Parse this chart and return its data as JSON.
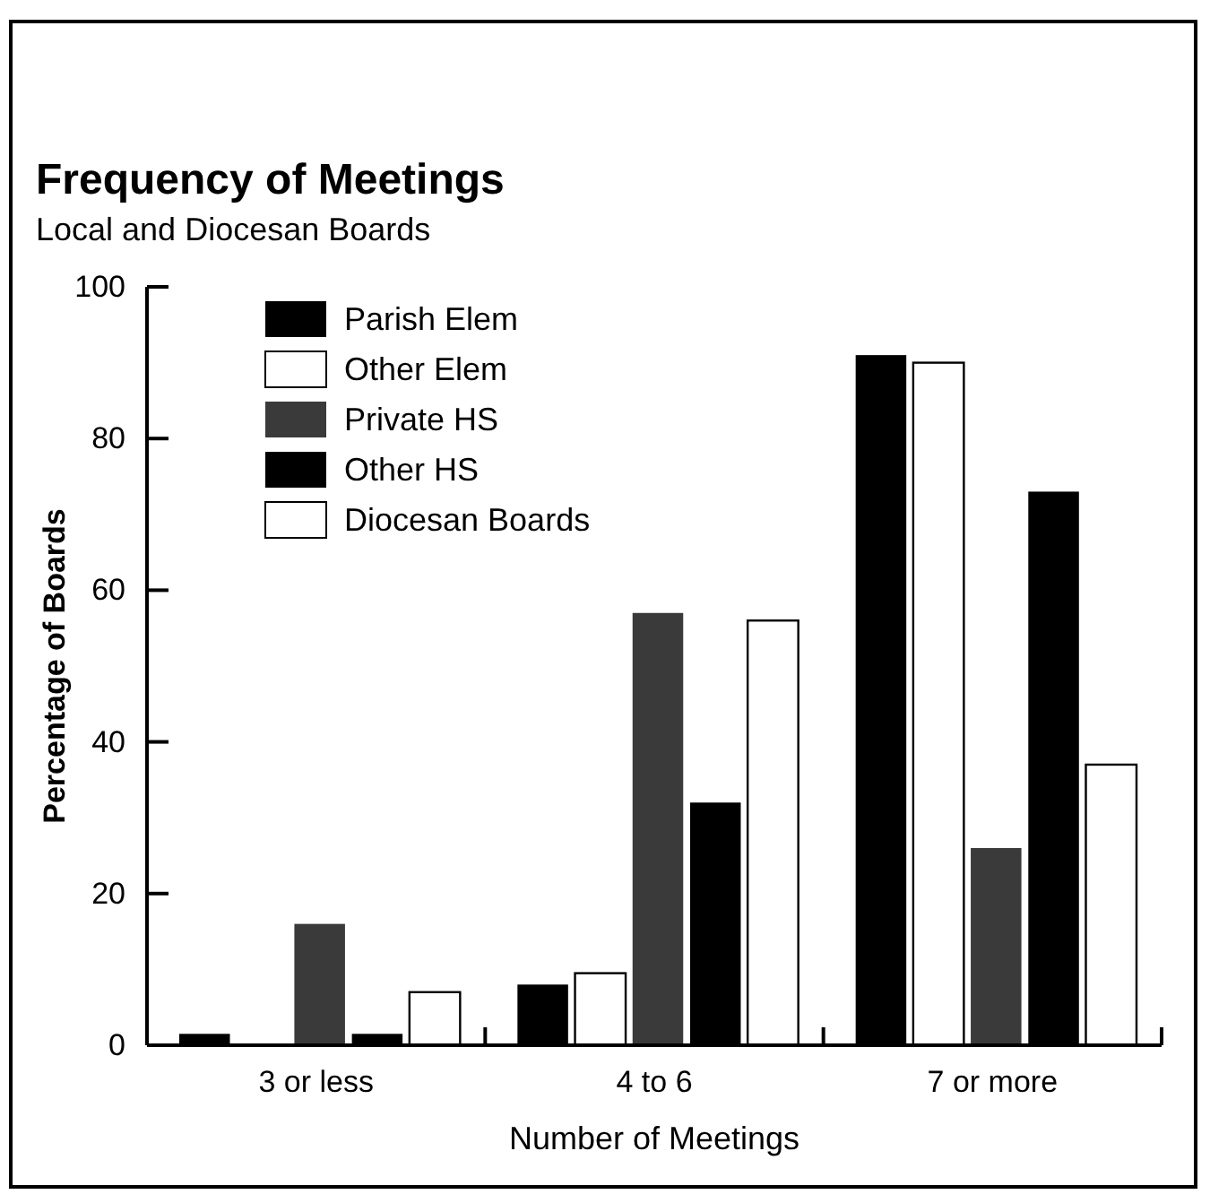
{
  "chart_data": {
    "type": "bar",
    "title": "Frequency of Meetings",
    "subtitle": "Local and Diocesan Boards",
    "xlabel": "Number of Meetings",
    "ylabel": "Percentage of Boards",
    "categories": [
      "3 or less",
      "4 to 6",
      "7 or more"
    ],
    "series": [
      {
        "name": "Parish Elem",
        "color": "#000000",
        "values": [
          1.5,
          8,
          91
        ]
      },
      {
        "name": "Other Elem",
        "color": "#ffffff",
        "values": [
          0,
          9.5,
          90
        ]
      },
      {
        "name": "Private HS",
        "color": "#3a3a3a",
        "values": [
          16,
          57,
          26
        ]
      },
      {
        "name": "Other HS",
        "color": "#000000",
        "values": [
          1.5,
          32,
          73
        ]
      },
      {
        "name": "Diocesan Boards",
        "color": "#ffffff",
        "values": [
          7,
          56,
          37
        ]
      }
    ],
    "ylim": [
      0,
      100
    ],
    "yticks": [
      0,
      20,
      40,
      60,
      80,
      100
    ],
    "grid": false,
    "legend": "top left"
  }
}
